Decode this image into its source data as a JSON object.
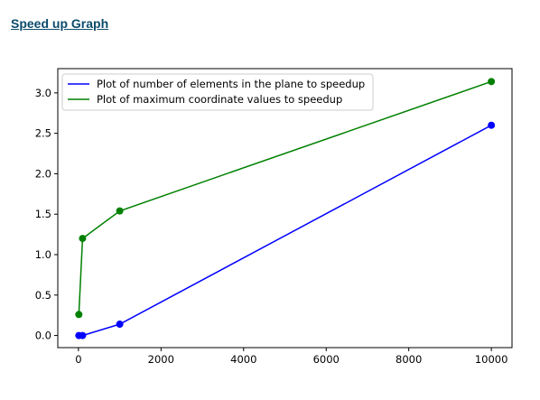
{
  "page": {
    "link_text": "Speed up Graph",
    "colors": {
      "link": "#0b4a6b"
    }
  },
  "chart_data": {
    "type": "line",
    "title": "",
    "xlabel": "",
    "ylabel": "",
    "xlim": [
      -500,
      10500
    ],
    "ylim": [
      -0.15,
      3.3
    ],
    "x_ticks": [
      0,
      2000,
      4000,
      6000,
      8000,
      10000
    ],
    "x_tick_labels": [
      "0",
      "2000",
      "4000",
      "6000",
      "8000",
      "10000"
    ],
    "y_ticks": [
      0,
      0.5,
      1.0,
      1.5,
      2.0,
      2.5,
      3.0
    ],
    "y_tick_labels": [
      "0.0",
      "0.5",
      "1.0",
      "1.5",
      "2.0",
      "2.5",
      "3.0"
    ],
    "grid": false,
    "legend_position": "upper-left",
    "series": [
      {
        "name": "Plot of number of elements in the plane to speedup",
        "color": "#0000ff",
        "marker": "circle",
        "x": [
          10,
          100,
          1000,
          10000
        ],
        "y": [
          0.0,
          0.0,
          0.14,
          2.6
        ]
      },
      {
        "name": "Plot of maximum coordinate values to speedup",
        "color": "#008000",
        "marker": "circle",
        "x": [
          10,
          100,
          1000,
          10000
        ],
        "y": [
          0.26,
          1.2,
          1.54,
          3.14
        ]
      }
    ]
  }
}
